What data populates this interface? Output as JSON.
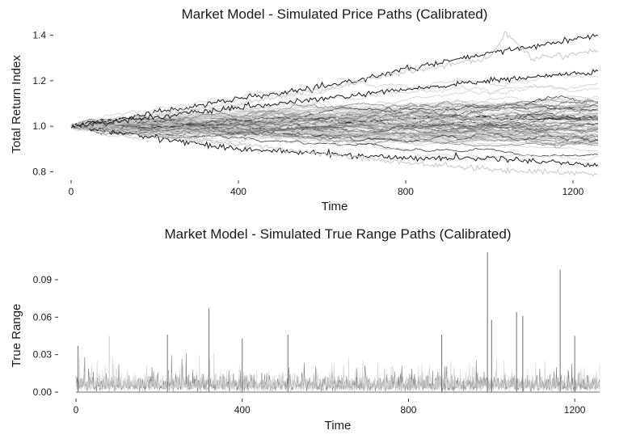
{
  "colors": {
    "dark": "#1a1a1a",
    "mid": "#6e6e6e",
    "light": "#c8c8c8",
    "text": "#1a1a1a"
  },
  "chart_data": [
    {
      "type": "line",
      "title": "Market Model - Simulated Price Paths (Calibrated)",
      "xlabel": "Time",
      "ylabel": "Total Return Index",
      "xlim": [
        0,
        1260
      ],
      "ylim": [
        0.78,
        1.42
      ],
      "x_ticks": [
        0,
        400,
        800,
        1200
      ],
      "x_tick_labels": [
        "0",
        "400",
        "800",
        "1200"
      ],
      "y_ticks": [
        0.8,
        1.0,
        1.2,
        1.4
      ],
      "y_tick_labels": [
        "0.8",
        "1.0",
        "1.2",
        "1.4"
      ],
      "grid": false,
      "legend": "none",
      "series_count": 100,
      "series": [
        {
          "color": "dark",
          "values_at": [
            0,
            200,
            400,
            600,
            800,
            1000,
            1260
          ],
          "values": [
            1.0,
            1.06,
            1.12,
            1.17,
            1.25,
            1.32,
            1.4
          ]
        },
        {
          "color": "light",
          "values_at": [
            0,
            200,
            400,
            600,
            800,
            1000,
            1040,
            1100,
            1260
          ],
          "values": [
            1.0,
            1.05,
            1.1,
            1.16,
            1.24,
            1.3,
            1.41,
            1.3,
            1.33
          ]
        },
        {
          "color": "dark",
          "values_at": [
            0,
            200,
            400,
            600,
            800,
            1000,
            1260
          ],
          "values": [
            1.0,
            1.04,
            1.08,
            1.12,
            1.16,
            1.2,
            1.24
          ]
        },
        {
          "color": "dark",
          "values_at": [
            0,
            200,
            400,
            600,
            800,
            1000,
            1260
          ],
          "values": [
            1.0,
            0.95,
            0.9,
            0.88,
            0.86,
            0.86,
            0.83
          ]
        },
        {
          "color": "light",
          "values_at": [
            0,
            200,
            400,
            600,
            800,
            1000,
            1260
          ],
          "values": [
            1.0,
            0.96,
            0.92,
            0.88,
            0.84,
            0.81,
            0.79
          ]
        }
      ]
    },
    {
      "type": "line",
      "title": "Market Model - Simulated True Range Paths (Calibrated)",
      "xlabel": "Time",
      "ylabel": "True Range",
      "xlim": [
        0,
        1260
      ],
      "ylim": [
        0,
        0.112
      ],
      "x_ticks": [
        0,
        400,
        800,
        1200
      ],
      "x_tick_labels": [
        "0",
        "400",
        "800",
        "1200"
      ],
      "y_ticks": [
        0.0,
        0.03,
        0.06,
        0.09
      ],
      "y_tick_labels": [
        "0.00",
        "0.03",
        "0.06",
        "0.09"
      ],
      "grid": false,
      "legend": "none",
      "typical_range": [
        0.0,
        0.02
      ],
      "spikes": [
        {
          "x": 5,
          "y": 0.037,
          "color": "mid"
        },
        {
          "x": 80,
          "y": 0.045,
          "color": "light"
        },
        {
          "x": 220,
          "y": 0.046,
          "color": "mid"
        },
        {
          "x": 320,
          "y": 0.067,
          "color": "mid"
        },
        {
          "x": 400,
          "y": 0.043,
          "color": "mid"
        },
        {
          "x": 510,
          "y": 0.046,
          "color": "mid"
        },
        {
          "x": 880,
          "y": 0.046,
          "color": "mid"
        },
        {
          "x": 990,
          "y": 0.112,
          "color": "mid"
        },
        {
          "x": 1000,
          "y": 0.058,
          "color": "mid"
        },
        {
          "x": 1060,
          "y": 0.064,
          "color": "mid"
        },
        {
          "x": 1075,
          "y": 0.061,
          "color": "mid"
        },
        {
          "x": 1165,
          "y": 0.098,
          "color": "mid"
        },
        {
          "x": 1200,
          "y": 0.045,
          "color": "mid"
        }
      ]
    }
  ]
}
